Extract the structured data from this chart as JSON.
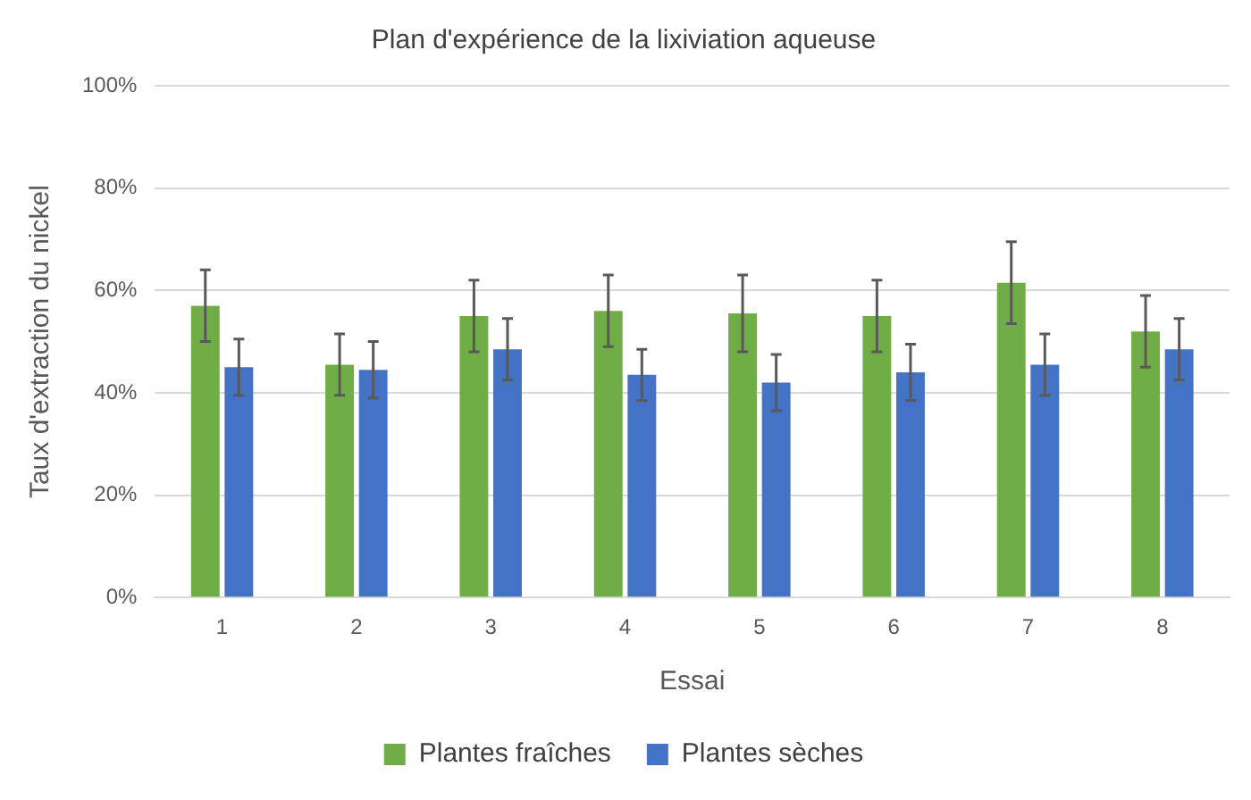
{
  "chart_data": {
    "type": "bar",
    "title": "Plan d'expérience de la lixiviation aqueuse",
    "xlabel": "Essai",
    "ylabel": "Taux d'extraction du nickel",
    "categories": [
      "1",
      "2",
      "3",
      "4",
      "5",
      "6",
      "7",
      "8"
    ],
    "series": [
      {
        "name": "Plantes fraîches",
        "color": "#70ad47",
        "values": [
          57,
          45.5,
          55,
          56,
          55.5,
          55,
          61.5,
          52
        ],
        "errors": [
          7,
          6,
          7,
          7,
          7.5,
          7,
          8,
          7
        ]
      },
      {
        "name": "Plantes sèches",
        "color": "#4472c4",
        "values": [
          45,
          44.5,
          48.5,
          43.5,
          42,
          44,
          45.5,
          48.5
        ],
        "errors": [
          5.5,
          5.5,
          6,
          5,
          5.5,
          5.5,
          6,
          6
        ]
      }
    ],
    "ylim": [
      0,
      100
    ],
    "yticks": [
      {
        "value": 0,
        "label": "0%"
      },
      {
        "value": 20,
        "label": "20%"
      },
      {
        "value": 40,
        "label": "40%"
      },
      {
        "value": 60,
        "label": "60%"
      },
      {
        "value": 80,
        "label": "80%"
      },
      {
        "value": 100,
        "label": "100%"
      }
    ],
    "grid": "y",
    "legend": "bottom"
  }
}
